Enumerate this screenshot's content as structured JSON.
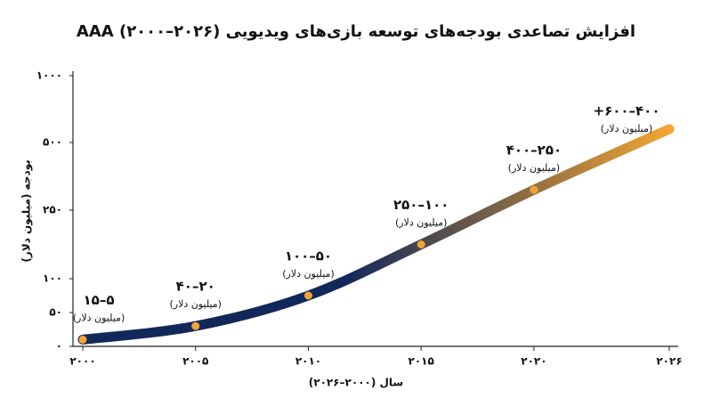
{
  "chart_data": {
    "type": "line",
    "title": "افزایش تصاعدی بودجه‌های توسعه بازی‌های ویدیویی AAA (۲۰۰۰–۲۰۲۶)",
    "x_label": "سال (۲۰۰۰–۲۰۲۶)",
    "y_label": "بودجه (میلیون دلار)",
    "unit_label": "(میلیون دلار)",
    "x": [
      2000,
      2005,
      2010,
      2015,
      2020,
      2026
    ],
    "values": [
      10,
      30,
      75,
      175,
      325,
      600
    ],
    "value_labels": [
      "۵–۱۵",
      "۲۰–۴۰",
      "۵۰–۱۰۰",
      "۱۰۰–۲۵۰",
      "۲۵۰–۴۰۰",
      "۴۰۰–۶۰۰+"
    ],
    "colors": [
      "#13285a",
      "#f2a532"
    ],
    "dot_color": "#f2a532",
    "xlim": [
      2000,
      2026
    ],
    "xticks": [
      {
        "value": 2000,
        "label": "۲۰۰۰"
      },
      {
        "value": 2005,
        "label": "۲۰۰۵"
      },
      {
        "value": 2010,
        "label": "۲۰۱۰"
      },
      {
        "value": 2015,
        "label": "۲۰۱۵"
      },
      {
        "value": 2020,
        "label": "۲۰۲۰"
      },
      {
        "value": 2026,
        "label": "۲۰۲۶"
      }
    ],
    "ylim": [
      0,
      1000
    ],
    "yticks": [
      {
        "value": 0,
        "label": "۰"
      },
      {
        "value": 50,
        "label": "۵۰"
      },
      {
        "value": 100,
        "label": "۱۰۰"
      },
      {
        "value": 250,
        "label": "۲۵۰"
      },
      {
        "value": 500,
        "label": "۵۰۰"
      },
      {
        "value": 1000,
        "label": "۱۰۰۰"
      }
    ]
  }
}
